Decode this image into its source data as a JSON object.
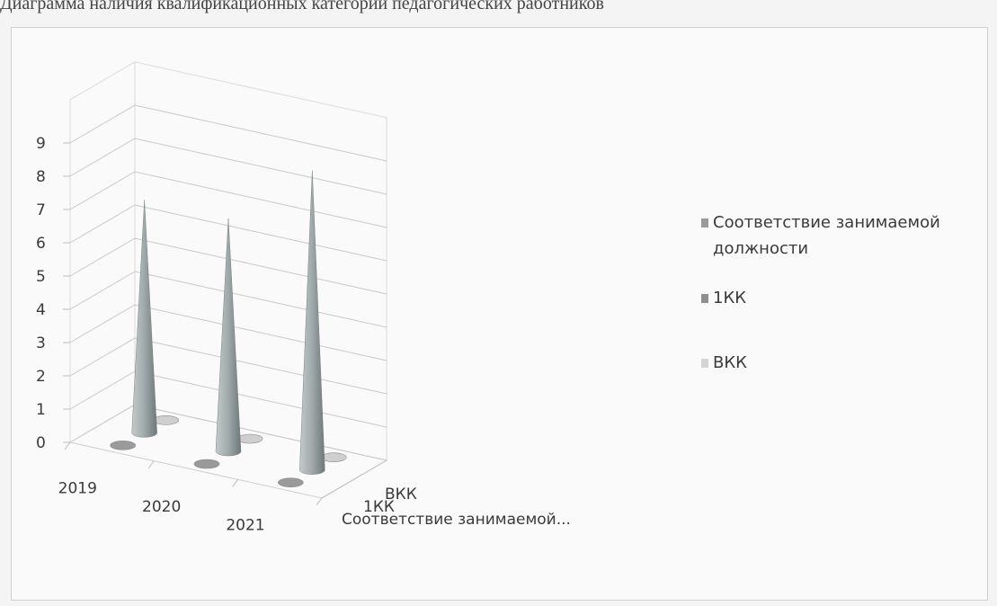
{
  "document": {
    "heading": "Диаграмма наличия квалификационных категорий педагогических работников"
  },
  "chart_data": {
    "type": "bar",
    "subtype": "3d-cone",
    "categories": [
      "2019",
      "2020",
      "2021"
    ],
    "series": [
      {
        "name": "Соответствие занимаемой должности",
        "axis_label": "Соответствие занимаемой...",
        "values": [
          0,
          0,
          0
        ],
        "color": "#9a9a9a"
      },
      {
        "name": "1КК",
        "axis_label": "1КК",
        "values": [
          7,
          7,
          9
        ],
        "color": "#a3adad"
      },
      {
        "name": "ВКК",
        "axis_label": "ВКК",
        "values": [
          0,
          0,
          0
        ],
        "color": "#cfcfcf"
      }
    ],
    "ylim": [
      0,
      9
    ],
    "yticks": [
      "0",
      "1",
      "2",
      "3",
      "4",
      "5",
      "6",
      "7",
      "8",
      "9"
    ],
    "grid": true,
    "legend": {
      "position": "right",
      "entries": [
        {
          "lines": [
            "Соответствие занимаемой",
            "должности"
          ],
          "color": "#9a9a9a"
        },
        {
          "lines": [
            "1КК"
          ],
          "color": "#8f8f8f"
        },
        {
          "lines": [
            "ВКК"
          ],
          "color": "#d5d5d5"
        }
      ]
    }
  }
}
